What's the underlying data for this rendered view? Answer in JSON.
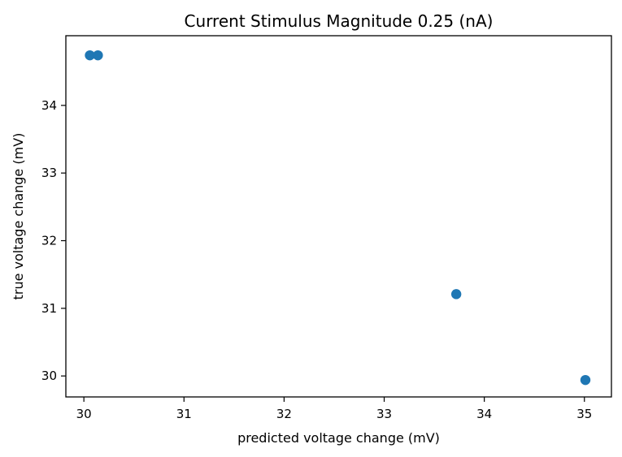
{
  "chart_data": {
    "type": "scatter",
    "title": "Current Stimulus Magnitude 0.25 (nA)",
    "xlabel": "predicted voltage change (mV)",
    "ylabel": "true voltage change (mV)",
    "xlim": [
      29.82,
      35.27
    ],
    "ylim": [
      29.69,
      35.03
    ],
    "xticks": [
      30,
      31,
      32,
      33,
      34,
      35
    ],
    "yticks": [
      30,
      31,
      32,
      33,
      34
    ],
    "grid": false,
    "series": [
      {
        "color": "#1f77b4",
        "points": [
          {
            "x": 30.06,
            "y": 34.74
          },
          {
            "x": 30.14,
            "y": 34.74
          },
          {
            "x": 33.72,
            "y": 31.21
          },
          {
            "x": 35.01,
            "y": 29.94
          }
        ]
      }
    ]
  }
}
